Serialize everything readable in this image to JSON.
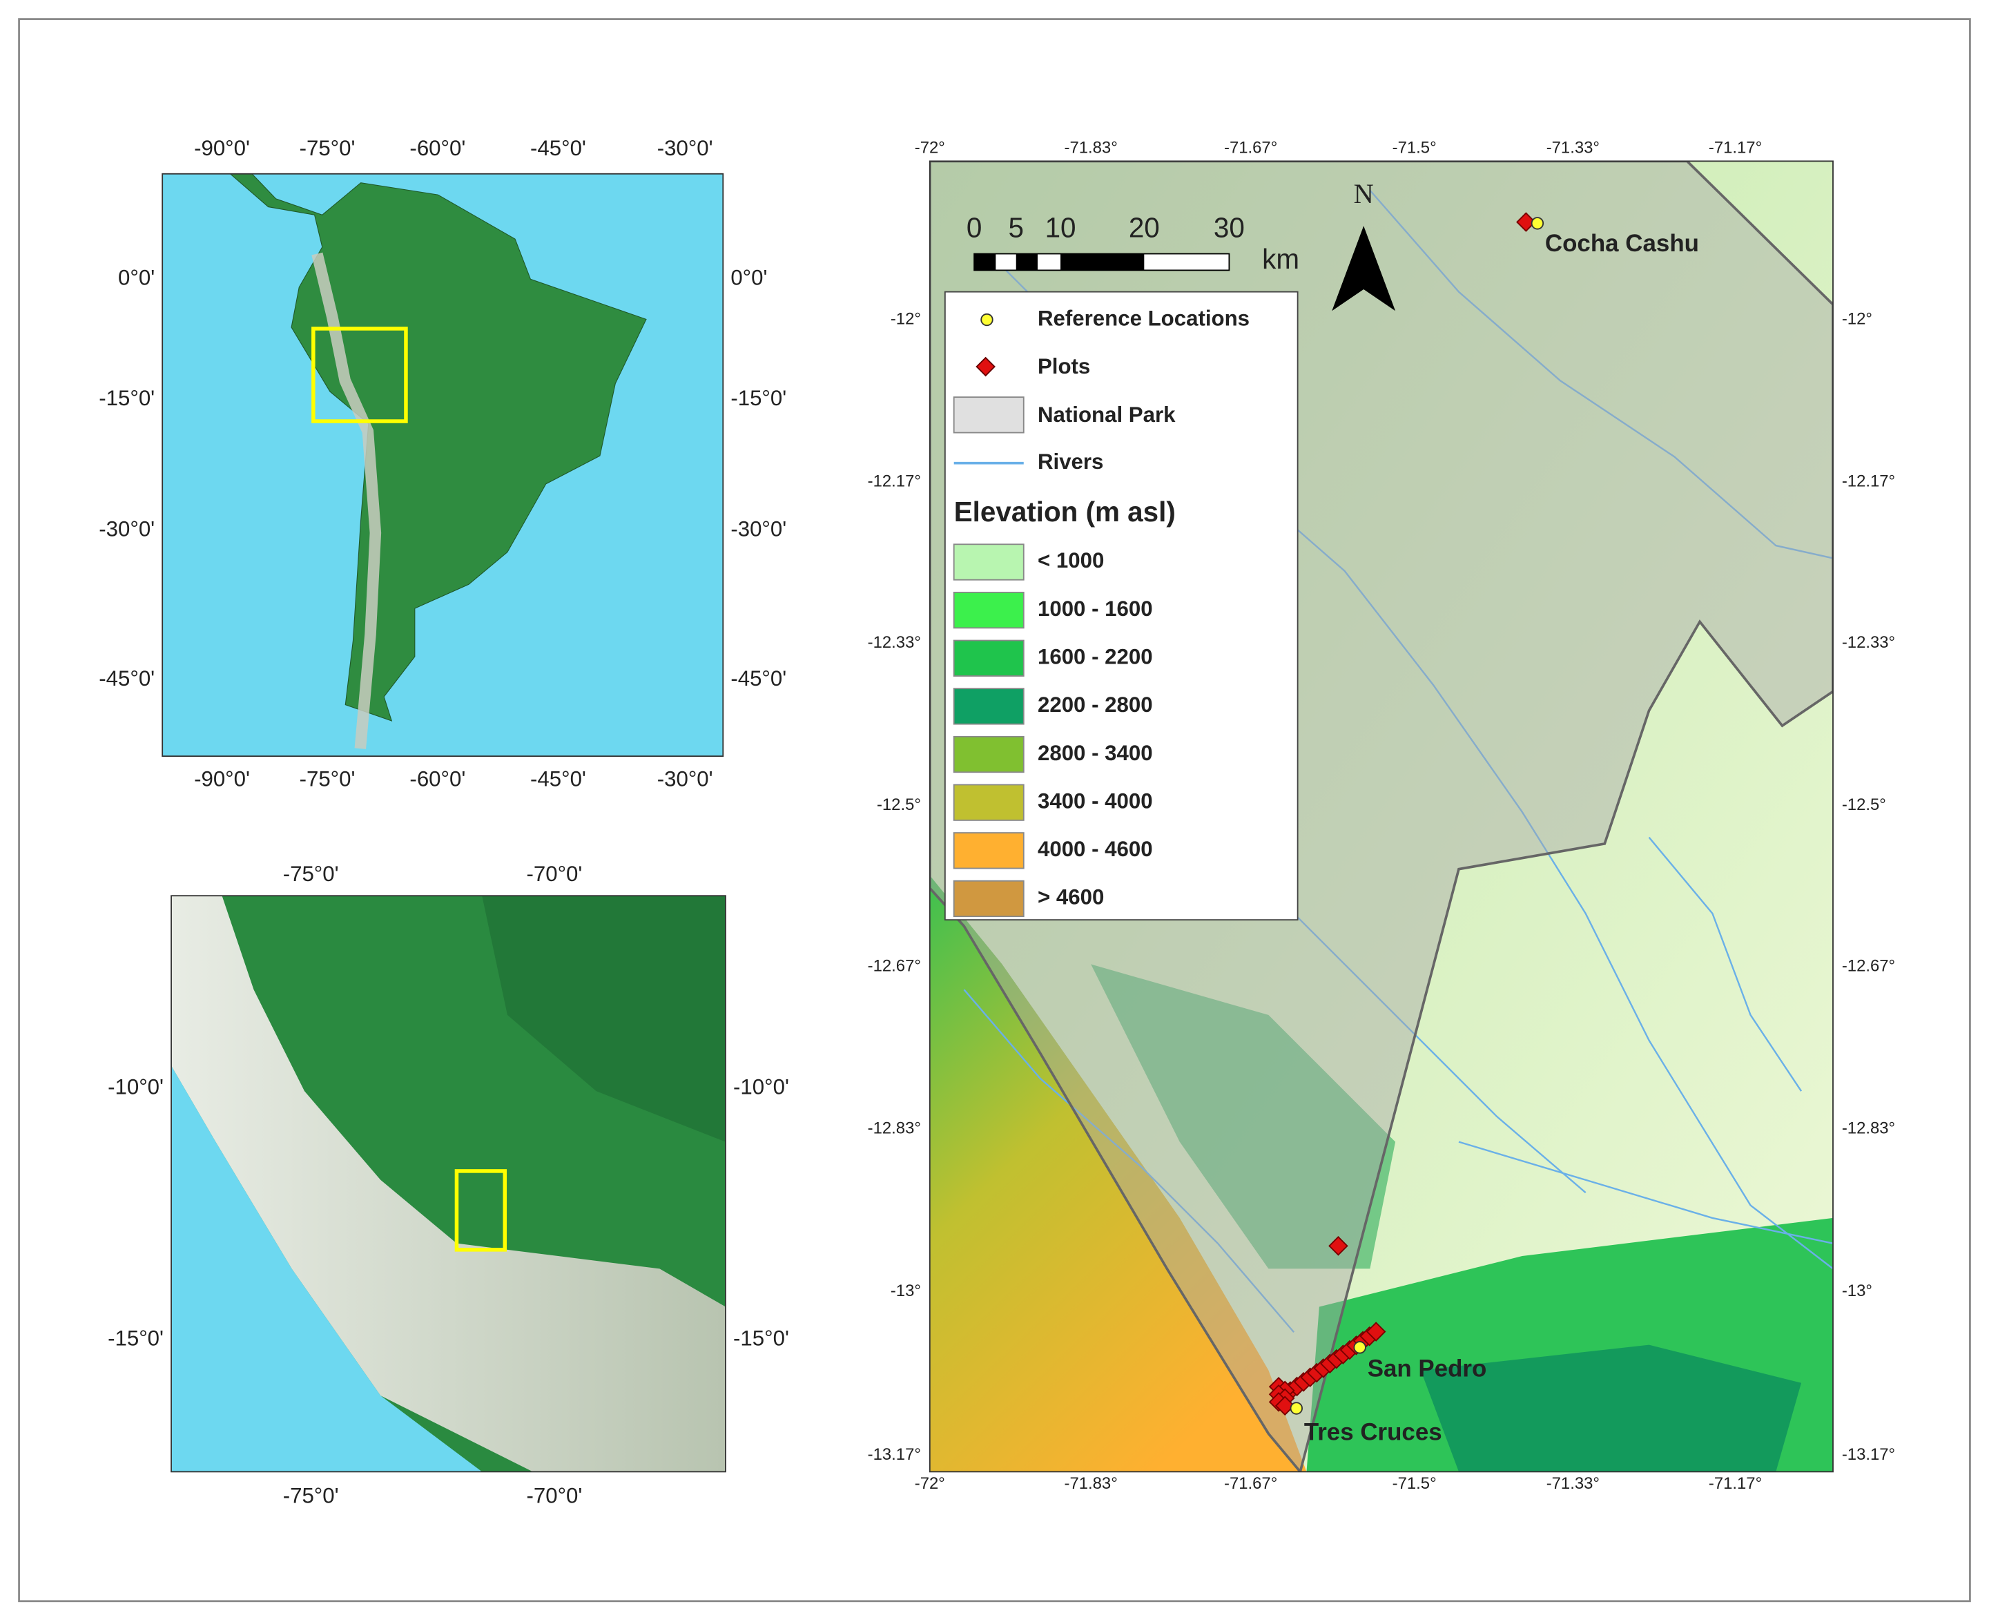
{
  "maps": [
    {
      "top_ticks": [
        "-90°0'",
        "-75°0'",
        "-60°0'",
        "-45°0'",
        "-30°0'"
      ],
      "bottom_ticks": [
        "-90°0'",
        "-75°0'",
        "-60°0'",
        "-45°0'",
        "-30°0'"
      ],
      "left_ticks": [
        "0°0'",
        "-15°0'",
        "-30°0'",
        "-45°0'"
      ],
      "right_ticks": [
        "0°0'",
        "-15°0'",
        "-30°0'",
        "-45°0'"
      ]
    },
    {
      "top_ticks": [
        "-75°0'",
        "-70°0'"
      ],
      "bottom_ticks": [
        "-75°0'",
        "-70°0'"
      ],
      "left_ticks": [
        "-10°0'",
        "-15°0'"
      ],
      "right_ticks": [
        "-10°0'",
        "-15°0'"
      ]
    },
    {
      "top_ticks": [
        "-72°",
        "-71.83°",
        "-71.67°",
        "-71.5°",
        "-71.33°",
        "-71.17°"
      ],
      "bottom_ticks": [
        "-72°",
        "-71.83°",
        "-71.67°",
        "-71.5°",
        "-71.33°",
        "-71.17°"
      ],
      "left_ticks": [
        "-12°",
        "-12.17°",
        "-12.33°",
        "-12.5°",
        "-12.67°",
        "-12.83°",
        "-13°",
        "-13.17°"
      ],
      "right_ticks": [
        "-12°",
        "-12.17°",
        "-12.33°",
        "-12.5°",
        "-12.67°",
        "-12.83°",
        "-13°",
        "-13.17°"
      ]
    }
  ],
  "legend": {
    "reference": "Reference Locations",
    "plots": "Plots",
    "park": "National Park",
    "rivers": "Rivers",
    "elevation_title": "Elevation (m asl)",
    "classes": [
      "< 1000",
      "1000 - 1600",
      "1600 - 2200",
      "2200 - 2800",
      "2800 - 3400",
      "3400 - 4000",
      "4000 - 4600",
      "> 4600"
    ]
  },
  "scale_bar": {
    "labels": [
      "0",
      "5",
      "10",
      "20",
      "30"
    ],
    "unit": "km"
  },
  "north": "N",
  "places": [
    "Cocha Cashu",
    "San Pedro",
    "Tres Cruces"
  ]
}
